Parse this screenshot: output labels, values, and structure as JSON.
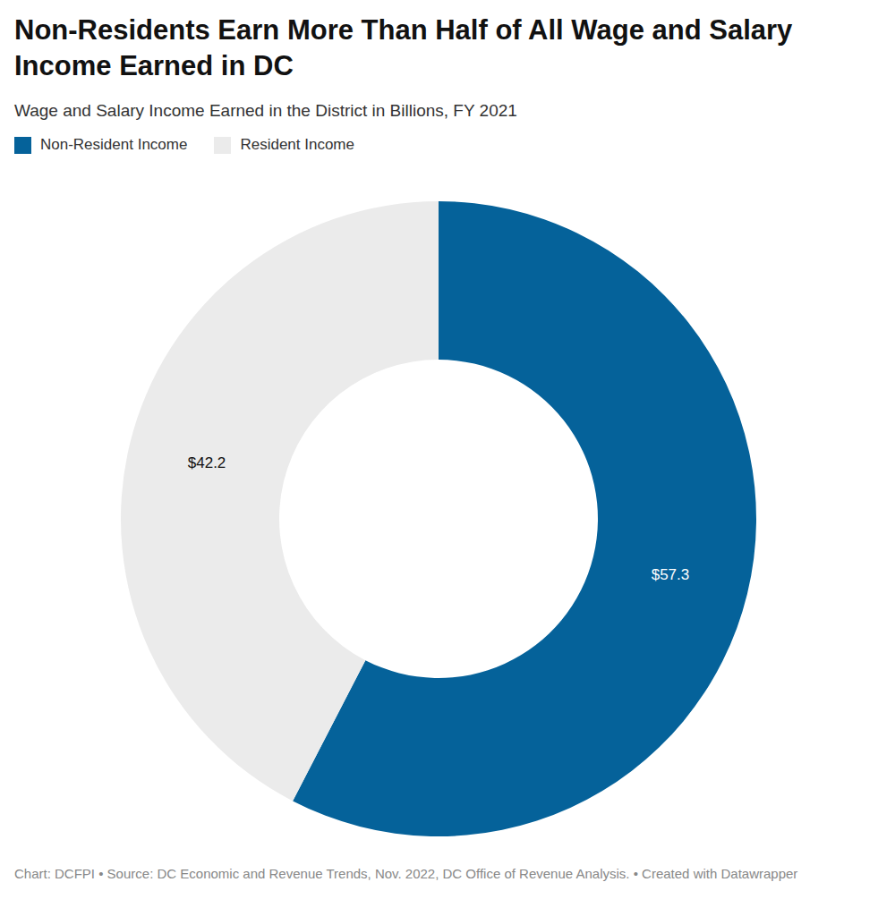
{
  "chart_data": {
    "type": "donut",
    "title": "Non-Residents Earn More Than Half of All Wage and Salary Income Earned in DC",
    "subtitle": "Wage and Salary Income Earned in the District in Billions, FY 2021",
    "source": "Chart: DCFPI • Source: DC Economic and Revenue Trends, Nov. 2022, DC Office of Revenue Analysis. • Created with Datawrapper",
    "categories": [
      "Non-Resident Income",
      "Resident Income"
    ],
    "values": [
      57.3,
      42.2
    ],
    "value_labels": [
      "$57.3",
      "$42.2"
    ],
    "colors": [
      "#05629a",
      "#ebebeb"
    ],
    "data_labels": true,
    "legend": "top-left"
  }
}
